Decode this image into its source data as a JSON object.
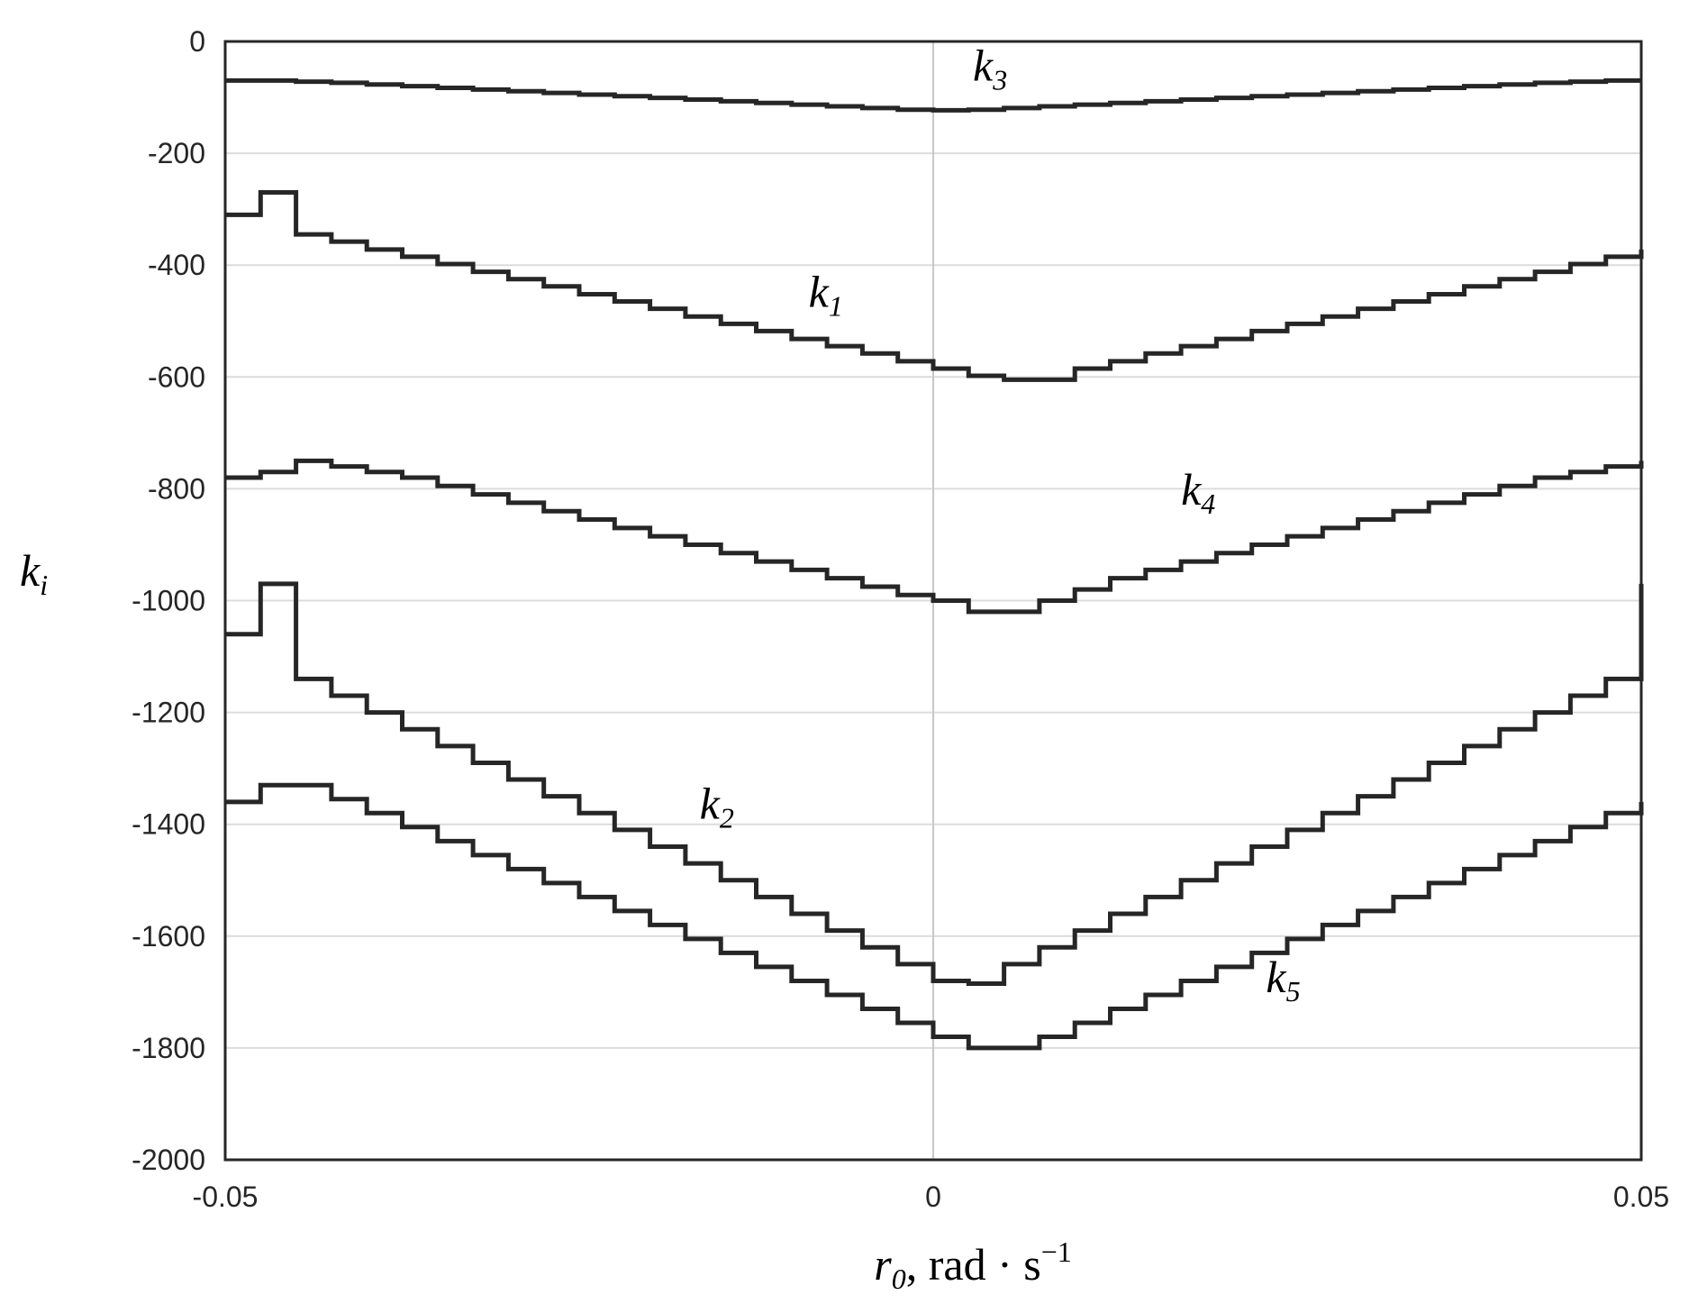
{
  "chart_data": {
    "type": "line",
    "step": true,
    "xlabel": {
      "main": "r",
      "sub": "0",
      "unit": ", rad · s",
      "sup": "−1"
    },
    "ylabel": {
      "main": "k",
      "sub": "i"
    },
    "xlim": [
      -0.05,
      0.05
    ],
    "ylim": [
      -2000,
      0
    ],
    "xticks": [
      -0.05,
      0,
      0.05
    ],
    "xtick_labels": [
      "-0.05",
      "0",
      "0.05"
    ],
    "yticks": [
      0,
      -200,
      -400,
      -600,
      -800,
      -1000,
      -1200,
      -1400,
      -1600,
      -1800,
      -2000
    ],
    "ytick_labels": [
      "0",
      "-200",
      "-400",
      "-600",
      "-800",
      "-1000",
      "-1200",
      "-1400",
      "-1600",
      "-1800",
      "-2000"
    ],
    "grid": true,
    "series": [
      {
        "name": "k1",
        "label": {
          "main": "k",
          "sub": "1",
          "at": [
            -0.0088,
            -475
          ]
        },
        "x": [
          -0.05,
          -0.0475,
          -0.045,
          -0.0425,
          -0.04,
          -0.0375,
          -0.035,
          -0.0325,
          -0.03,
          -0.0275,
          -0.025,
          -0.0225,
          -0.02,
          -0.0175,
          -0.015,
          -0.0125,
          -0.01,
          -0.0075,
          -0.005,
          -0.0025,
          0,
          0.0025,
          0.005,
          0.0075,
          0.01,
          0.0125,
          0.015,
          0.0175,
          0.02,
          0.0225,
          0.025,
          0.0275,
          0.03,
          0.0325,
          0.035,
          0.0375,
          0.04,
          0.0425,
          0.045,
          0.0475,
          0.05
        ],
        "y": [
          -310,
          -270,
          -345,
          -358,
          -372,
          -385,
          -398,
          -412,
          -425,
          -438,
          -452,
          -465,
          -478,
          -492,
          -505,
          -518,
          -532,
          -545,
          -558,
          -572,
          -585,
          -598,
          -605,
          -605,
          -585,
          -572,
          -558,
          -545,
          -532,
          -518,
          -505,
          -492,
          -478,
          -465,
          -452,
          -438,
          -425,
          -412,
          -398,
          -385,
          -372
        ]
      },
      {
        "name": "k2",
        "label": {
          "main": "k",
          "sub": "2",
          "at": [
            -0.0165,
            -1390
          ]
        },
        "x": [
          -0.05,
          -0.0475,
          -0.045,
          -0.0425,
          -0.04,
          -0.0375,
          -0.035,
          -0.0325,
          -0.03,
          -0.0275,
          -0.025,
          -0.0225,
          -0.02,
          -0.0175,
          -0.015,
          -0.0125,
          -0.01,
          -0.0075,
          -0.005,
          -0.0025,
          0,
          0.0025,
          0.005,
          0.0075,
          0.01,
          0.0125,
          0.015,
          0.0175,
          0.02,
          0.0225,
          0.025,
          0.0275,
          0.03,
          0.0325,
          0.035,
          0.0375,
          0.04,
          0.0425,
          0.045,
          0.0475,
          0.05
        ],
        "y": [
          -1060,
          -970,
          -1140,
          -1170,
          -1200,
          -1230,
          -1260,
          -1290,
          -1320,
          -1350,
          -1380,
          -1410,
          -1440,
          -1470,
          -1500,
          -1530,
          -1560,
          -1590,
          -1620,
          -1650,
          -1680,
          -1685,
          -1650,
          -1620,
          -1590,
          -1560,
          -1530,
          -1500,
          -1470,
          -1440,
          -1410,
          -1380,
          -1350,
          -1320,
          -1290,
          -1260,
          -1230,
          -1200,
          -1170,
          -1140,
          -970
        ]
      },
      {
        "name": "k3",
        "label": {
          "main": "k",
          "sub": "3",
          "at": [
            0.0028,
            -70
          ]
        },
        "x": [
          -0.05,
          -0.0475,
          -0.045,
          -0.0425,
          -0.04,
          -0.0375,
          -0.035,
          -0.0325,
          -0.03,
          -0.0275,
          -0.025,
          -0.0225,
          -0.02,
          -0.0175,
          -0.015,
          -0.0125,
          -0.01,
          -0.0075,
          -0.005,
          -0.0025,
          0,
          0.0025,
          0.005,
          0.0075,
          0.01,
          0.0125,
          0.015,
          0.0175,
          0.02,
          0.0225,
          0.025,
          0.0275,
          0.03,
          0.0325,
          0.035,
          0.0375,
          0.04,
          0.0425,
          0.045,
          0.0475,
          0.05
        ],
        "y": [
          -70,
          -70,
          -72,
          -74,
          -77,
          -80,
          -83,
          -86,
          -89,
          -92,
          -95,
          -98,
          -101,
          -104,
          -107,
          -110,
          -113,
          -116,
          -119,
          -122,
          -123,
          -122,
          -119,
          -116,
          -113,
          -110,
          -107,
          -104,
          -101,
          -98,
          -95,
          -92,
          -89,
          -86,
          -83,
          -80,
          -77,
          -74,
          -72,
          -70,
          -70
        ]
      },
      {
        "name": "k4",
        "label": {
          "main": "k",
          "sub": "4",
          "at": [
            0.0175,
            -828
          ]
        },
        "x": [
          -0.05,
          -0.0475,
          -0.045,
          -0.0425,
          -0.04,
          -0.0375,
          -0.035,
          -0.0325,
          -0.03,
          -0.0275,
          -0.025,
          -0.0225,
          -0.02,
          -0.0175,
          -0.015,
          -0.0125,
          -0.01,
          -0.0075,
          -0.005,
          -0.0025,
          0,
          0.0025,
          0.005,
          0.0075,
          0.01,
          0.0125,
          0.015,
          0.0175,
          0.02,
          0.0225,
          0.025,
          0.0275,
          0.03,
          0.0325,
          0.035,
          0.0375,
          0.04,
          0.0425,
          0.045,
          0.0475,
          0.05
        ],
        "y": [
          -780,
          -770,
          -750,
          -760,
          -770,
          -780,
          -795,
          -810,
          -825,
          -840,
          -855,
          -870,
          -885,
          -900,
          -915,
          -930,
          -945,
          -960,
          -975,
          -990,
          -1000,
          -1020,
          -1020,
          -1000,
          -980,
          -960,
          -945,
          -930,
          -915,
          -900,
          -885,
          -870,
          -855,
          -840,
          -825,
          -810,
          -795,
          -780,
          -770,
          -760,
          -750
        ]
      },
      {
        "name": "k5",
        "label": {
          "main": "k",
          "sub": "5",
          "at": [
            0.0235,
            -1700
          ]
        },
        "x": [
          -0.05,
          -0.0475,
          -0.045,
          -0.0425,
          -0.04,
          -0.0375,
          -0.035,
          -0.0325,
          -0.03,
          -0.0275,
          -0.025,
          -0.0225,
          -0.02,
          -0.0175,
          -0.015,
          -0.0125,
          -0.01,
          -0.0075,
          -0.005,
          -0.0025,
          0,
          0.0025,
          0.005,
          0.0075,
          0.01,
          0.0125,
          0.015,
          0.0175,
          0.02,
          0.0225,
          0.025,
          0.0275,
          0.03,
          0.0325,
          0.035,
          0.0375,
          0.04,
          0.0425,
          0.045,
          0.0475,
          0.05
        ],
        "y": [
          -1360,
          -1330,
          -1330,
          -1355,
          -1380,
          -1405,
          -1430,
          -1455,
          -1480,
          -1505,
          -1530,
          -1555,
          -1580,
          -1605,
          -1630,
          -1655,
          -1680,
          -1705,
          -1730,
          -1755,
          -1780,
          -1800,
          -1800,
          -1780,
          -1755,
          -1730,
          -1705,
          -1680,
          -1655,
          -1630,
          -1605,
          -1580,
          -1555,
          -1530,
          -1505,
          -1480,
          -1455,
          -1430,
          -1405,
          -1380,
          -1360
        ]
      }
    ]
  }
}
